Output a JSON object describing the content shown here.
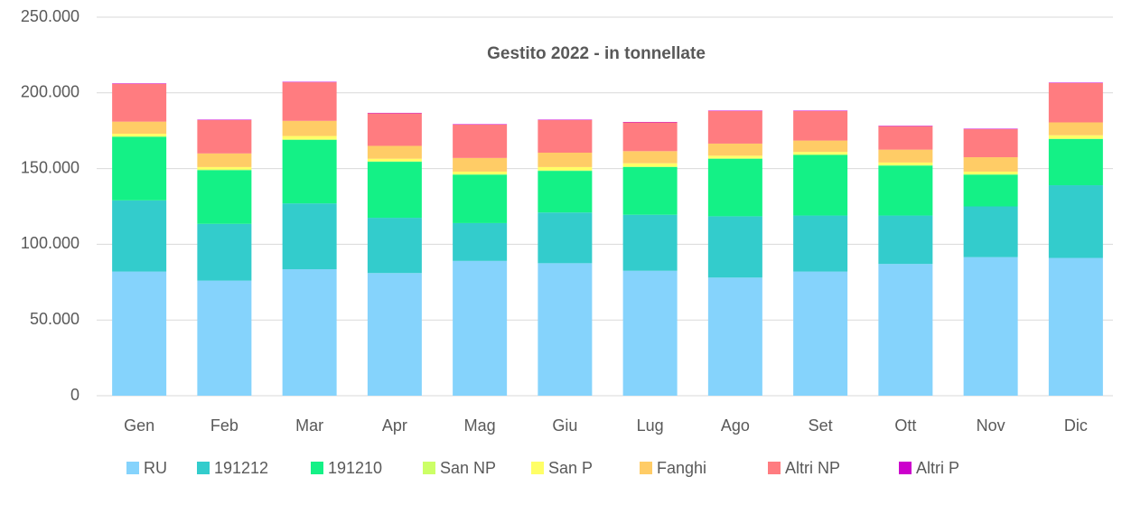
{
  "chart_data": {
    "type": "stacked_bar",
    "title": "Gestito 2022 - in tonnellate",
    "categories": [
      "Gen",
      "Feb",
      "Mar",
      "Apr",
      "Mag",
      "Giu",
      "Lug",
      "Ago",
      "Set",
      "Ott",
      "Nov",
      "Dic"
    ],
    "series": [
      {
        "name": "RU",
        "color": "#85d3fc",
        "values": [
          82000,
          76000,
          83500,
          81000,
          89000,
          87500,
          82500,
          78000,
          82000,
          87000,
          91500,
          91000
        ]
      },
      {
        "name": "191212",
        "color": "#33cccc",
        "values": [
          47000,
          37500,
          43500,
          36500,
          25000,
          33500,
          37000,
          40500,
          37000,
          32000,
          33500,
          48000
        ]
      },
      {
        "name": "191210",
        "color": "#14f186",
        "values": [
          42000,
          35500,
          42000,
          37000,
          32000,
          27500,
          31500,
          38000,
          40000,
          33000,
          21000,
          30500
        ]
      },
      {
        "name": "San NP",
        "color": "#ccff66",
        "values": [
          500,
          500,
          500,
          500,
          500,
          500,
          500,
          500,
          500,
          500,
          500,
          500
        ]
      },
      {
        "name": "San P",
        "color": "#ffff66",
        "values": [
          1500,
          1500,
          2000,
          1500,
          1500,
          2000,
          2000,
          1500,
          1500,
          1500,
          1500,
          2000
        ]
      },
      {
        "name": "Fanghi",
        "color": "#ffcc66",
        "values": [
          8000,
          9000,
          10000,
          8500,
          9000,
          9500,
          8000,
          8000,
          7500,
          8500,
          9500,
          8500
        ]
      },
      {
        "name": "Altri NP",
        "color": "#ff7c80",
        "values": [
          25000,
          22000,
          25500,
          21500,
          22000,
          21500,
          19000,
          21500,
          19500,
          15500,
          18500,
          26000
        ]
      },
      {
        "name": "Altri P",
        "color": "#cc00cc",
        "values": [
          300,
          300,
          300,
          300,
          300,
          300,
          300,
          300,
          300,
          300,
          300,
          300
        ]
      }
    ],
    "ylim": [
      0,
      250000
    ],
    "yticks": [
      0,
      {
        "value": 50000,
        "label": "50.000"
      },
      {
        "value": 100000,
        "label": "100.000"
      },
      {
        "value": 150000,
        "label": "150.000"
      },
      {
        "value": 200000,
        "label": "200.000"
      },
      {
        "value": 250000,
        "label": "250.000"
      }
    ],
    "grid": true,
    "legend": "bottom"
  }
}
